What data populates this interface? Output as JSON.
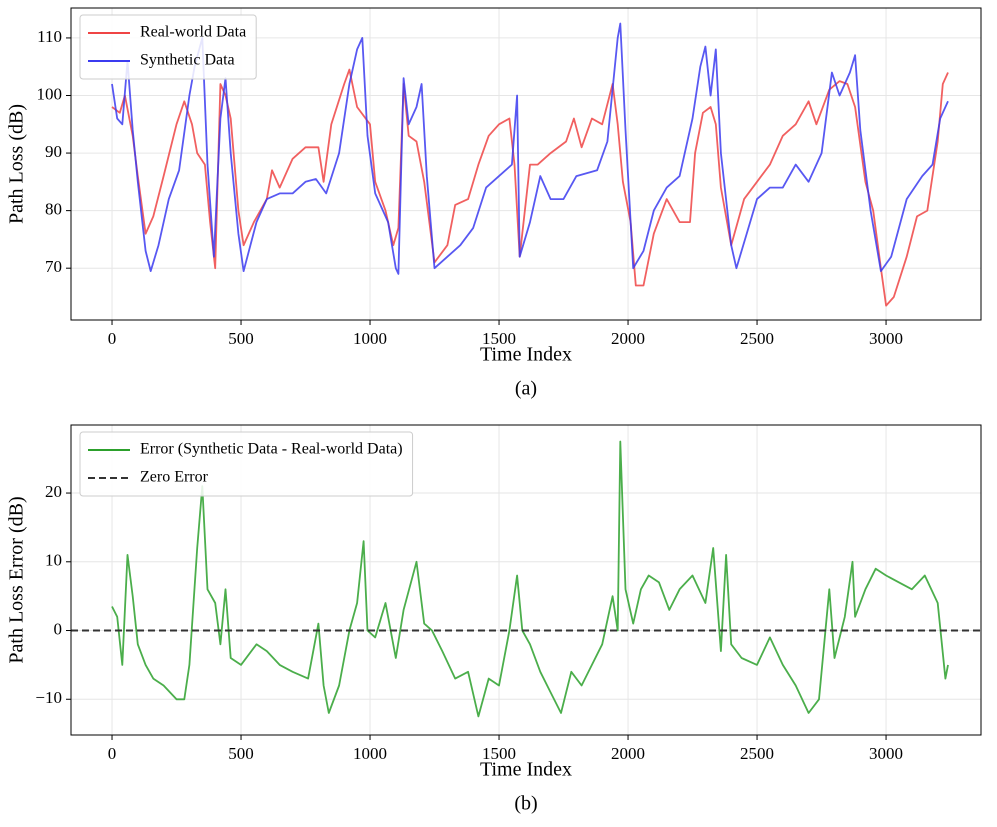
{
  "chart_data": [
    {
      "type": "line",
      "caption": "(a)",
      "xlabel": "Time Index",
      "ylabel": "Path Loss (dB)",
      "xlim": [
        -159,
        3368
      ],
      "ylim": [
        61,
        115.2
      ],
      "xticks": [
        0,
        500,
        1000,
        1500,
        2000,
        2500,
        3000
      ],
      "yticks": [
        70,
        80,
        90,
        100,
        110
      ],
      "grid": true,
      "legend": "upper left",
      "series": [
        {
          "name": "Real-world Data",
          "color": "#ef4444",
          "x": [
            0,
            30,
            50,
            80,
            100,
            130,
            160,
            200,
            250,
            280,
            310,
            330,
            360,
            380,
            400,
            420,
            440,
            460,
            490,
            510,
            550,
            600,
            620,
            650,
            700,
            750,
            800,
            820,
            850,
            900,
            920,
            950,
            1000,
            1020,
            1060,
            1090,
            1110,
            1130,
            1150,
            1180,
            1210,
            1250,
            1300,
            1330,
            1380,
            1420,
            1460,
            1500,
            1540,
            1560,
            1580,
            1620,
            1650,
            1700,
            1760,
            1790,
            1820,
            1860,
            1900,
            1940,
            1960,
            1980,
            2010,
            2030,
            2060,
            2100,
            2150,
            2200,
            2240,
            2260,
            2290,
            2320,
            2340,
            2360,
            2400,
            2450,
            2500,
            2550,
            2600,
            2650,
            2700,
            2730,
            2780,
            2820,
            2850,
            2880,
            2920,
            2950,
            2980,
            3000,
            3030,
            3080,
            3120,
            3160,
            3200,
            3220,
            3240
          ],
          "values": [
            98,
            97,
            100,
            93,
            86,
            76,
            79,
            86,
            95,
            99,
            95,
            90,
            88,
            78,
            70,
            102,
            100,
            96,
            80,
            74,
            78,
            82,
            87,
            84,
            89,
            91,
            91,
            85,
            95,
            102,
            104.5,
            98,
            95,
            85,
            80,
            74,
            77,
            102,
            93,
            92,
            85,
            71,
            74,
            81,
            82,
            88,
            93,
            95,
            96,
            88,
            72,
            88,
            88,
            90,
            92,
            96,
            91,
            96,
            95,
            102,
            95,
            85,
            78,
            67,
            67,
            76,
            82,
            78,
            78,
            90,
            97,
            98,
            95,
            84,
            74,
            82,
            85,
            88,
            93,
            95,
            99,
            95,
            101,
            102.5,
            102,
            98,
            85,
            80,
            70,
            63.5,
            65,
            72,
            79,
            80,
            92,
            102,
            104
          ]
        },
        {
          "name": "Synthetic Data",
          "color": "#3b3bf0",
          "x": [
            0,
            20,
            40,
            60,
            80,
            100,
            130,
            150,
            180,
            220,
            260,
            300,
            320,
            350,
            370,
            395,
            420,
            440,
            460,
            490,
            510,
            560,
            600,
            650,
            700,
            750,
            790,
            830,
            880,
            920,
            950,
            970,
            990,
            1020,
            1070,
            1100,
            1110,
            1130,
            1150,
            1180,
            1200,
            1220,
            1250,
            1300,
            1350,
            1400,
            1450,
            1500,
            1550,
            1570,
            1580,
            1620,
            1660,
            1700,
            1750,
            1800,
            1880,
            1920,
            1960,
            1970,
            1990,
            2020,
            2060,
            2100,
            2150,
            2200,
            2250,
            2280,
            2300,
            2320,
            2340,
            2360,
            2400,
            2420,
            2460,
            2500,
            2550,
            2600,
            2650,
            2700,
            2750,
            2790,
            2820,
            2860,
            2880,
            2900,
            2940,
            2980,
            3020,
            3080,
            3140,
            3180,
            3210,
            3240
          ],
          "values": [
            102,
            96,
            95,
            106,
            94,
            85,
            73,
            69.5,
            74,
            82,
            87,
            100,
            105,
            110,
            88,
            72,
            96,
            103,
            90,
            76,
            69.5,
            78,
            82,
            83,
            83,
            85,
            85.5,
            83,
            90,
            102,
            108,
            110,
            93,
            83,
            78,
            70,
            69,
            103,
            95,
            98,
            102,
            86,
            70,
            72,
            74,
            77,
            84,
            86,
            88,
            100,
            72,
            78,
            86,
            82,
            82,
            86,
            87,
            92,
            110,
            112.5,
            94,
            70,
            73,
            80,
            84,
            86,
            96,
            105,
            108.5,
            100,
            108,
            90,
            74,
            70,
            76,
            82,
            84,
            84,
            88,
            85,
            90,
            104,
            100,
            104,
            107,
            94,
            80,
            69.5,
            72,
            82,
            86,
            88,
            96,
            99
          ]
        }
      ]
    },
    {
      "type": "line",
      "caption": "(b)",
      "xlabel": "Time Index",
      "ylabel": "Path Loss Error (dB)",
      "xlim": [
        -159,
        3368
      ],
      "ylim": [
        -15.2,
        29.9
      ],
      "xticks": [
        0,
        500,
        1000,
        1500,
        2000,
        2500,
        3000
      ],
      "yticks": [
        {
          "value": -10,
          "label": "−10"
        },
        0,
        10,
        20
      ],
      "grid": true,
      "legend": "upper left",
      "series": [
        {
          "name": "Error (Synthetic Data - Real-world Data)",
          "color": "#2ca02c",
          "x": [
            0,
            20,
            40,
            60,
            80,
            100,
            130,
            160,
            200,
            250,
            280,
            300,
            330,
            350,
            370,
            400,
            420,
            440,
            460,
            500,
            560,
            600,
            650,
            700,
            760,
            800,
            820,
            840,
            880,
            920,
            950,
            975,
            990,
            1020,
            1060,
            1100,
            1130,
            1180,
            1210,
            1240,
            1280,
            1330,
            1380,
            1420,
            1460,
            1500,
            1540,
            1570,
            1590,
            1620,
            1660,
            1700,
            1740,
            1780,
            1820,
            1860,
            1900,
            1940,
            1960,
            1970,
            1990,
            2020,
            2050,
            2080,
            2120,
            2160,
            2200,
            2250,
            2300,
            2330,
            2360,
            2380,
            2400,
            2440,
            2500,
            2550,
            2600,
            2650,
            2700,
            2740,
            2780,
            2800,
            2840,
            2870,
            2880,
            2920,
            2960,
            3000,
            3050,
            3100,
            3150,
            3200,
            3230,
            3240
          ],
          "values": [
            3.5,
            2,
            -5,
            11,
            5,
            -2,
            -5,
            -7,
            -8,
            -10,
            -10,
            -5,
            12,
            21,
            6,
            4,
            -2,
            6,
            -4,
            -5,
            -2,
            -3,
            -5,
            -6,
            -7,
            1,
            -8,
            -12,
            -8,
            0,
            4,
            13,
            0,
            -1,
            4,
            -4,
            3,
            10,
            1,
            0,
            -3,
            -7,
            -6,
            -12.5,
            -7,
            -8,
            0,
            8,
            0,
            -2,
            -6,
            -9,
            -12,
            -6,
            -8,
            -5,
            -2,
            5,
            0,
            27.5,
            6,
            1,
            6,
            8,
            7,
            3,
            6,
            8,
            4,
            12,
            -3,
            11,
            -2,
            -4,
            -5,
            -1,
            -5,
            -8,
            -12,
            -10,
            6,
            -4,
            2,
            10,
            2,
            6,
            9,
            8,
            7,
            6,
            8,
            4,
            -7,
            -5
          ]
        },
        {
          "name": "Zero Error",
          "color": "#333333",
          "dashed": true,
          "y": 0
        }
      ]
    }
  ]
}
